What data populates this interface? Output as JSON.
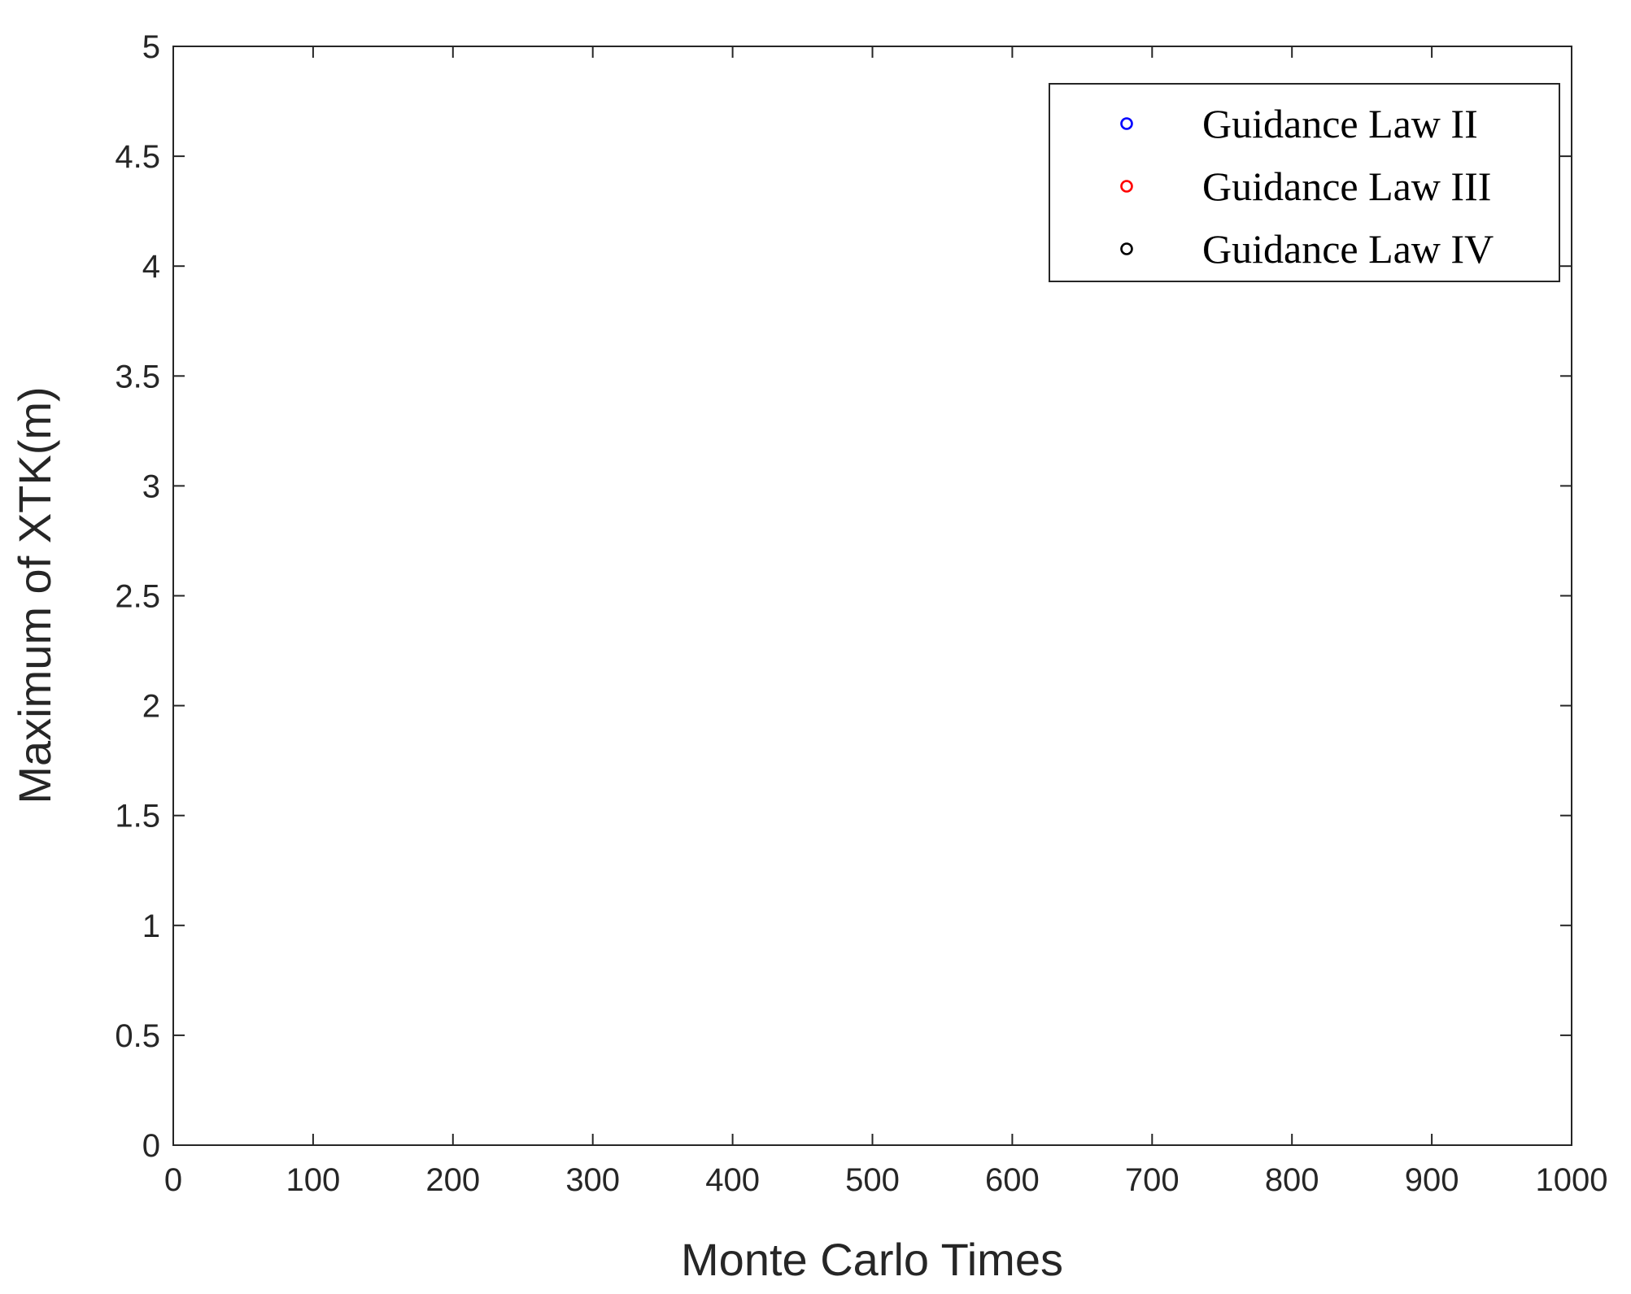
{
  "chart_data": {
    "type": "scatter",
    "title": "",
    "xlabel": "Monte Carlo Times",
    "ylabel": "Maximum of XTK(m)",
    "xlim": [
      0,
      1000
    ],
    "ylim": [
      0,
      5
    ],
    "xticks": [
      "0",
      "100",
      "200",
      "300",
      "400",
      "500",
      "600",
      "700",
      "800",
      "900",
      "1000"
    ],
    "yticks": [
      "0",
      "0.5",
      "1",
      "1.5",
      "2",
      "2.5",
      "3",
      "3.5",
      "4",
      "4.5",
      "5"
    ],
    "grid": false,
    "legend_position": "top-right",
    "marker": "open-circle",
    "n_points_per_series": 1000,
    "series": [
      {
        "name": "Guidance Law II",
        "color": "#0000ff",
        "stats": {
          "min": 0.4,
          "max": 4.53,
          "typical_low": 0.5,
          "typical_high": 2.5
        },
        "notable_points": [
          {
            "x": 1,
            "y": 1.45
          },
          {
            "x": 3,
            "y": 0.97
          },
          {
            "x": 10,
            "y": 3.24
          },
          {
            "x": 17,
            "y": 2.58
          },
          {
            "x": 29,
            "y": 3.1
          },
          {
            "x": 36,
            "y": 3.3
          },
          {
            "x": 40,
            "y": 2.42
          },
          {
            "x": 68,
            "y": 2.6
          },
          {
            "x": 90,
            "y": 3.25
          },
          {
            "x": 100,
            "y": 3.81
          },
          {
            "x": 143,
            "y": 3.56
          },
          {
            "x": 157,
            "y": 3.16
          },
          {
            "x": 163,
            "y": 2.83
          },
          {
            "x": 208,
            "y": 3.13
          },
          {
            "x": 228,
            "y": 4.01
          },
          {
            "x": 236,
            "y": 3.03
          },
          {
            "x": 275,
            "y": 3.4
          },
          {
            "x": 291,
            "y": 3.22
          },
          {
            "x": 308,
            "y": 2.95
          },
          {
            "x": 328,
            "y": 3.13
          },
          {
            "x": 348,
            "y": 3.59
          },
          {
            "x": 369,
            "y": 3.63
          },
          {
            "x": 380,
            "y": 3.03
          },
          {
            "x": 407,
            "y": 3.4
          },
          {
            "x": 443,
            "y": 4.53
          },
          {
            "x": 459,
            "y": 3.67
          },
          {
            "x": 473,
            "y": 3.76
          },
          {
            "x": 491,
            "y": 3.45
          },
          {
            "x": 512,
            "y": 3.08
          },
          {
            "x": 535,
            "y": 3.53
          },
          {
            "x": 558,
            "y": 3.9
          },
          {
            "x": 595,
            "y": 3.49
          },
          {
            "x": 605,
            "y": 3.38
          },
          {
            "x": 631,
            "y": 3.21
          },
          {
            "x": 653,
            "y": 3.74
          },
          {
            "x": 680,
            "y": 3.24
          },
          {
            "x": 705,
            "y": 3.57
          },
          {
            "x": 710,
            "y": 3.13
          },
          {
            "x": 805,
            "y": 3.18
          },
          {
            "x": 823,
            "y": 3.05
          },
          {
            "x": 860,
            "y": 3.37
          },
          {
            "x": 873,
            "y": 3.32
          },
          {
            "x": 897,
            "y": 3.23
          },
          {
            "x": 938,
            "y": 3.84
          },
          {
            "x": 958,
            "y": 3.51
          },
          {
            "x": 977,
            "y": 3.39
          },
          {
            "x": 998,
            "y": 2.58
          },
          {
            "x": 999,
            "y": 2.27
          }
        ]
      },
      {
        "name": "Guidance Law III",
        "color": "#ff0000",
        "stats": {
          "min": 0.2,
          "max": 3.43,
          "typical_low": 0.3,
          "typical_high": 1.8
        },
        "notable_points": [
          {
            "x": 4,
            "y": 1.97
          },
          {
            "x": 60,
            "y": 2.92
          },
          {
            "x": 100,
            "y": 2.18
          },
          {
            "x": 133,
            "y": 2.46
          },
          {
            "x": 152,
            "y": 3.13
          },
          {
            "x": 225,
            "y": 2.68
          },
          {
            "x": 236,
            "y": 2.24
          },
          {
            "x": 353,
            "y": 2.74
          },
          {
            "x": 368,
            "y": 2.69
          },
          {
            "x": 398,
            "y": 2.43
          },
          {
            "x": 462,
            "y": 2.46
          },
          {
            "x": 485,
            "y": 2.25
          },
          {
            "x": 515,
            "y": 2.67
          },
          {
            "x": 569,
            "y": 2.69
          },
          {
            "x": 611,
            "y": 2.47
          },
          {
            "x": 643,
            "y": 3.03
          },
          {
            "x": 673,
            "y": 2.86
          },
          {
            "x": 733,
            "y": 2.38
          },
          {
            "x": 782,
            "y": 2.22
          },
          {
            "x": 789,
            "y": 2.78
          },
          {
            "x": 808,
            "y": 2.75
          },
          {
            "x": 831,
            "y": 2.74
          },
          {
            "x": 878,
            "y": 3.1
          },
          {
            "x": 930,
            "y": 3.43
          },
          {
            "x": 935,
            "y": 2.71
          },
          {
            "x": 977,
            "y": 2.81
          },
          {
            "x": 996,
            "y": 1.75
          },
          {
            "x": 998,
            "y": 1.01
          }
        ]
      },
      {
        "name": "Guidance Law IV",
        "color": "#000000",
        "stats": {
          "min": 0.1,
          "max": 2.26,
          "typical_low": 0.15,
          "typical_high": 1.3
        },
        "notable_points": [
          {
            "x": 68,
            "y": 1.8
          },
          {
            "x": 329,
            "y": 2.26
          },
          {
            "x": 350,
            "y": 1.84
          },
          {
            "x": 383,
            "y": 1.56
          },
          {
            "x": 441,
            "y": 1.81
          },
          {
            "x": 459,
            "y": 2.2
          },
          {
            "x": 604,
            "y": 2.04
          },
          {
            "x": 700,
            "y": 1.59
          },
          {
            "x": 873,
            "y": 1.78
          },
          {
            "x": 928,
            "y": 1.66
          },
          {
            "x": 960,
            "y": 1.45
          },
          {
            "x": 998,
            "y": 1.2
          }
        ]
      }
    ]
  }
}
